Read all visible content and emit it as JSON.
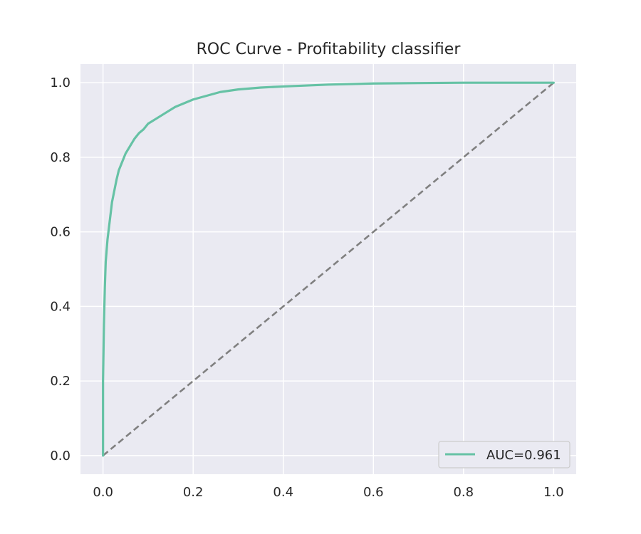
{
  "chart_data": {
    "type": "line",
    "title": "ROC Curve - Profitability classifier",
    "xlabel": "",
    "ylabel": "",
    "xlim": [
      -0.05,
      1.05
    ],
    "ylim": [
      -0.05,
      1.05
    ],
    "xticks": [
      "0.0",
      "0.2",
      "0.4",
      "0.6",
      "0.8",
      "1.0"
    ],
    "yticks": [
      "0.0",
      "0.2",
      "0.4",
      "0.6",
      "0.8",
      "1.0"
    ],
    "grid": true,
    "legend": {
      "placement": "lower-right",
      "entries": [
        "AUC=0.961"
      ]
    },
    "series": [
      {
        "name": "AUC=0.961",
        "color": "#66c2a5",
        "style": "solid",
        "x": [
          0.0,
          0.0,
          0.002,
          0.004,
          0.006,
          0.01,
          0.015,
          0.02,
          0.025,
          0.03,
          0.035,
          0.04,
          0.05,
          0.06,
          0.07,
          0.08,
          0.09,
          0.1,
          0.12,
          0.14,
          0.16,
          0.18,
          0.2,
          0.23,
          0.26,
          0.3,
          0.35,
          0.4,
          0.5,
          0.6,
          0.7,
          0.8,
          0.9,
          1.0
        ],
        "y": [
          0.0,
          0.2,
          0.35,
          0.45,
          0.52,
          0.58,
          0.63,
          0.68,
          0.71,
          0.74,
          0.765,
          0.78,
          0.81,
          0.83,
          0.85,
          0.865,
          0.875,
          0.89,
          0.905,
          0.92,
          0.935,
          0.945,
          0.955,
          0.965,
          0.975,
          0.982,
          0.987,
          0.99,
          0.995,
          0.998,
          0.999,
          1.0,
          1.0,
          1.0
        ]
      },
      {
        "name": "",
        "color": "#808080",
        "style": "dashed",
        "x": [
          0.0,
          1.0
        ],
        "y": [
          0.0,
          1.0
        ]
      }
    ]
  }
}
